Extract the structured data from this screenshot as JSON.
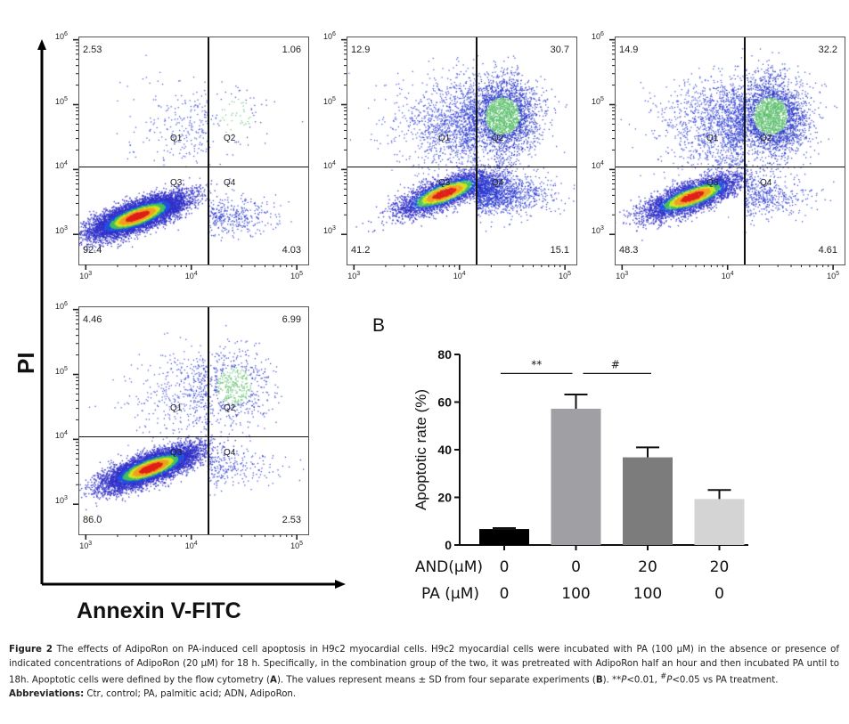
{
  "figure": {
    "y_axis_label": "PI",
    "x_axis_label": "Annexin V-FITC",
    "panel_b_label": "B",
    "caption": {
      "fig_label": "Figure 2",
      "text": " The effects of AdipoRon on PA-induced cell apoptosis in H9c2 myocardial cells. H9c2 myocardial cells were incubated with PA (100 µM) in the absence or presence of indicated concentrations of AdipoRon (20 µM) for 18 h. Specifically, in the combination group of the two, it was pretreated with AdipoRon half an hour and then incubated PA until to 18h. Apoptotic cells were defined by the flow cytometry (",
      "ref_a": "A",
      "text2": "). The values represent means ± SD from four separate experiments (",
      "ref_b": "B",
      "text3": "). **",
      "p1": "P",
      "text4": "<0.01, ",
      "hash": "#",
      "p2": "P",
      "text5": "<0.05 vs PA treatment.",
      "abbrev_label": "Abbreviations:",
      "abbrev_text": " Ctr, control; PA, palmitic acid; ADN, AdipoRon."
    }
  },
  "chart_data": [
    {
      "type": "scatter",
      "subtype": "flow-cytometry-quadrant",
      "panel": "A1",
      "xlabel": "Annexin V-FITC",
      "ylabel": "PI",
      "x_scale": "log",
      "y_scale": "log",
      "x_ticks": [
        "10^3",
        "10^4",
        "10^5"
      ],
      "y_ticks": [
        "10^3",
        "10^4",
        "10^5",
        "10^6"
      ],
      "quadrant_labels": [
        "Q1",
        "Q2",
        "Q3",
        "Q4"
      ],
      "quadrant_percent": {
        "Q1": "2.53",
        "Q2": "1.06",
        "Q3": "92.4",
        "Q4": "4.03"
      },
      "population_center": {
        "x": 3000,
        "y": 2000
      }
    },
    {
      "type": "scatter",
      "subtype": "flow-cytometry-quadrant",
      "panel": "A2",
      "xlabel": "Annexin V-FITC",
      "ylabel": "PI",
      "x_scale": "log",
      "y_scale": "log",
      "x_ticks": [
        "10^3",
        "10^4",
        "10^5"
      ],
      "y_ticks": [
        "10^3",
        "10^4",
        "10^5",
        "10^6"
      ],
      "quadrant_labels": [
        "Q1",
        "Q2",
        "Q3",
        "Q4"
      ],
      "quadrant_percent": {
        "Q1": "12.9",
        "Q2": "30.7",
        "Q3": "41.2",
        "Q4": "15.1"
      },
      "population_center": {
        "x": 7000,
        "y": 4500
      }
    },
    {
      "type": "scatter",
      "subtype": "flow-cytometry-quadrant",
      "panel": "A3",
      "xlabel": "Annexin V-FITC",
      "ylabel": "PI",
      "x_scale": "log",
      "y_scale": "log",
      "x_ticks": [
        "10^3",
        "10^4",
        "10^5"
      ],
      "y_ticks": [
        "10^3",
        "10^4",
        "10^5",
        "10^6"
      ],
      "quadrant_labels": [
        "Q1",
        "Q2",
        "Q3",
        "Q4"
      ],
      "quadrant_percent": {
        "Q1": "14.9",
        "Q2": "32.2",
        "Q3": "48.3",
        "Q4": "4.61"
      },
      "population_center": {
        "x": 4500,
        "y": 4000
      }
    },
    {
      "type": "scatter",
      "subtype": "flow-cytometry-quadrant",
      "panel": "A4",
      "xlabel": "Annexin V-FITC",
      "ylabel": "PI",
      "x_scale": "log",
      "y_scale": "log",
      "x_ticks": [
        "10^3",
        "10^4",
        "10^5"
      ],
      "y_ticks": [
        "10^3",
        "10^4",
        "10^5",
        "10^6"
      ],
      "quadrant_labels": [
        "Q1",
        "Q2",
        "Q3",
        "Q4"
      ],
      "quadrant_percent": {
        "Q1": "4.46",
        "Q2": "6.99",
        "Q3": "86.0",
        "Q4": "2.53"
      },
      "population_center": {
        "x": 4000,
        "y": 3800
      }
    },
    {
      "type": "bar",
      "panel": "B",
      "title": "",
      "ylabel": "Apoptotic rate (%)",
      "ylim": [
        0,
        80
      ],
      "y_ticks": [
        0,
        20,
        40,
        60,
        80
      ],
      "row_labels": [
        "AND(µM)",
        "PA (µM)"
      ],
      "categories": [
        {
          "and": "0",
          "pa": "0"
        },
        {
          "and": "0",
          "pa": "100"
        },
        {
          "and": "20",
          "pa": "100"
        },
        {
          "and": "20",
          "pa": "0"
        }
      ],
      "values": [
        6.7,
        57.2,
        36.8,
        19.3
      ],
      "errors": [
        0.4,
        6.0,
        4.2,
        3.8
      ],
      "bar_colors": [
        "#000000",
        "#a0a0a4",
        "#7c7c7c",
        "#d4d4d4"
      ],
      "significance": [
        {
          "from": 0,
          "to": 1,
          "label": "**"
        },
        {
          "from": 1,
          "to": 2,
          "label": "#"
        }
      ]
    }
  ]
}
